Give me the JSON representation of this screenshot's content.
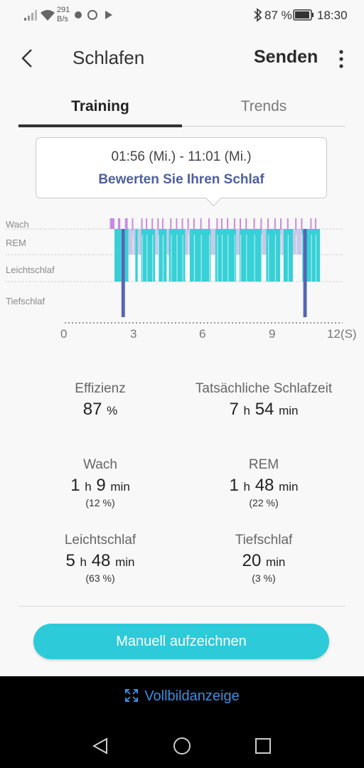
{
  "status_bar": {
    "net_speed_value": "291",
    "net_speed_unit": "B/s",
    "battery": "87 %",
    "time": "18:30"
  },
  "header": {
    "title": "Schlafen",
    "send_label": "Senden"
  },
  "tabs": [
    {
      "label": "Training",
      "active": true
    },
    {
      "label": "Trends",
      "active": false
    }
  ],
  "tooltip": {
    "time_range": "01:56 (Mi.) - 11:01 (Mi.)",
    "rate_label": "Bewerten Sie Ihren Schlaf"
  },
  "chart_data": {
    "type": "timeline",
    "stages": [
      "Wach",
      "REM",
      "Leichtschlaf",
      "Tiefschlaf"
    ],
    "x_ticks": [
      "0",
      "3",
      "6",
      "9",
      "12(S)"
    ],
    "xlim": [
      0,
      12
    ],
    "colors": {
      "Wach": "#c98ae0",
      "REM": "#c7c9e6",
      "Leichtschlaf": "#37d0d6",
      "Tiefschlaf": "#5565b3"
    },
    "segments": [
      {
        "stage": "Wach",
        "start": 1.95,
        "end": 2.15
      },
      {
        "stage": "Leichtschlaf",
        "start": 2.15,
        "end": 2.45
      },
      {
        "stage": "Wach",
        "start": 2.3,
        "end": 2.4
      },
      {
        "stage": "Tiefschlaf",
        "start": 2.45,
        "end": 2.6
      },
      {
        "stage": "Wach",
        "start": 2.6,
        "end": 2.72
      },
      {
        "stage": "Leichtschlaf",
        "start": 2.6,
        "end": 2.75
      },
      {
        "stage": "REM",
        "start": 2.75,
        "end": 3.05
      },
      {
        "stage": "Leichtschlaf",
        "start": 3.05,
        "end": 3.15
      },
      {
        "stage": "REM",
        "start": 3.15,
        "end": 3.3
      },
      {
        "stage": "Leichtschlaf",
        "start": 3.3,
        "end": 3.9
      },
      {
        "stage": "REM",
        "start": 3.9,
        "end": 4.05
      },
      {
        "stage": "Leichtschlaf",
        "start": 4.05,
        "end": 4.4
      },
      {
        "stage": "REM",
        "start": 4.4,
        "end": 4.5
      },
      {
        "stage": "Leichtschlaf",
        "start": 4.5,
        "end": 5.2
      },
      {
        "stage": "REM",
        "start": 5.2,
        "end": 5.4
      },
      {
        "stage": "Leichtschlaf",
        "start": 5.4,
        "end": 6.3
      },
      {
        "stage": "REM",
        "start": 6.3,
        "end": 6.5
      },
      {
        "stage": "Leichtschlaf",
        "start": 6.5,
        "end": 7.4
      },
      {
        "stage": "REM",
        "start": 7.4,
        "end": 7.55
      },
      {
        "stage": "Leichtschlaf",
        "start": 7.55,
        "end": 8.5
      },
      {
        "stage": "REM",
        "start": 8.5,
        "end": 8.7
      },
      {
        "stage": "Leichtschlaf",
        "start": 8.7,
        "end": 9.3
      },
      {
        "stage": "REM",
        "start": 9.3,
        "end": 9.45
      },
      {
        "stage": "Leichtschlaf",
        "start": 9.45,
        "end": 9.85
      },
      {
        "stage": "REM",
        "start": 9.85,
        "end": 10.25
      },
      {
        "stage": "Leichtschlaf",
        "start": 10.25,
        "end": 10.3
      },
      {
        "stage": "Tiefschlaf",
        "start": 10.3,
        "end": 10.45
      },
      {
        "stage": "Leichtschlaf",
        "start": 10.45,
        "end": 11.02
      }
    ],
    "wake_marks": [
      2.9,
      3.3,
      3.5,
      3.75,
      4.0,
      4.2,
      4.55,
      4.8,
      5.05,
      5.3,
      5.55,
      5.85,
      6.2,
      6.55,
      6.75,
      7.0,
      7.3,
      7.55,
      7.8,
      8.15,
      8.45,
      8.75,
      9.05,
      9.3,
      9.6,
      9.95,
      10.2,
      10.6,
      10.8
    ]
  },
  "stats": [
    {
      "label": "Effizienz",
      "value": "87",
      "unit": "%",
      "pct": ""
    },
    {
      "label": "Tatsächliche Schlafzeit",
      "h": "7",
      "h_unit": "h",
      "m": "54",
      "m_unit": "min",
      "pct": ""
    },
    {
      "label": "Wach",
      "h": "1",
      "h_unit": "h",
      "m": "9",
      "m_unit": "min",
      "pct": "(12 %)"
    },
    {
      "label": "REM",
      "h": "1",
      "h_unit": "h",
      "m": "48",
      "m_unit": "min",
      "pct": "(22 %)"
    },
    {
      "label": "Leichtschlaf",
      "h": "5",
      "h_unit": "h",
      "m": "48",
      "m_unit": "min",
      "pct": "(63 %)"
    },
    {
      "label": "Tiefschlaf",
      "m": "20",
      "m_unit": "min",
      "pct": "(3 %)"
    }
  ],
  "button_label": "Manuell aufzeichnen",
  "fullscreen_label": "Vollbildanzeige",
  "icons": [
    "signal-icon",
    "wifi-icon",
    "bluetooth-icon",
    "battery-icon",
    "back-arrow-icon",
    "more-vert-icon",
    "fullscreen-icon",
    "nav-back-icon",
    "nav-home-icon",
    "nav-recent-icon"
  ]
}
